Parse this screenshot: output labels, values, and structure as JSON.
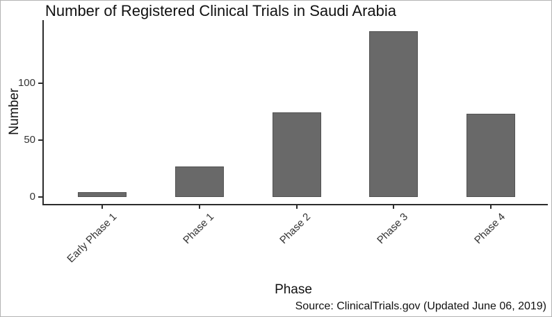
{
  "chart_data": {
    "type": "bar",
    "title": "Number of Registered Clinical Trials in Saudi Arabia",
    "xlabel": "Phase",
    "ylabel": "Number",
    "categories": [
      "Early Phase 1",
      "Phase 1",
      "Phase 2",
      "Phase 3",
      "Phase 4"
    ],
    "values": [
      4,
      27,
      74,
      145,
      73
    ],
    "yticks": [
      0,
      50,
      100
    ],
    "ylim": [
      0,
      155
    ],
    "grid": false,
    "legend": "none",
    "bar_color": "#696969",
    "axis_color": "#2b2b2b",
    "source": "Source: ClinicalTrials.gov (Updated June 06, 2019)"
  }
}
